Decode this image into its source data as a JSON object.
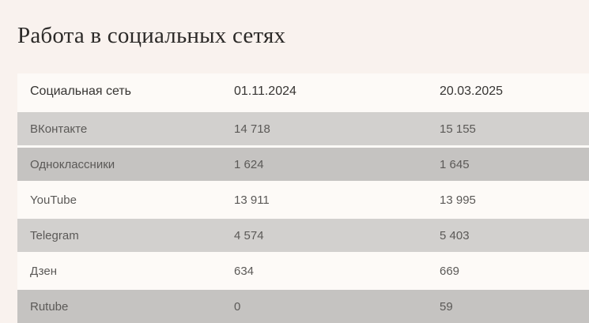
{
  "page": {
    "title": "Работа в социальных сетях"
  },
  "table": {
    "columns": [
      {
        "label": "Социальная сеть"
      },
      {
        "label": "01.11.2024"
      },
      {
        "label": "20.03.2025"
      }
    ],
    "rows": [
      {
        "network": "ВКонтакте",
        "value_nov2024": "14 718",
        "value_mar2025": "15 155"
      },
      {
        "network": "Одноклассники",
        "value_nov2024": "1 624",
        "value_mar2025": "1 645"
      },
      {
        "network": "YouTube",
        "value_nov2024": "13 911",
        "value_mar2025": "13 995"
      },
      {
        "network": "Telegram",
        "value_nov2024": "4 574",
        "value_mar2025": "5 403"
      },
      {
        "network": "Дзен",
        "value_nov2024": "634",
        "value_mar2025": "669"
      },
      {
        "network": "Rutube",
        "value_nov2024": "0",
        "value_mar2025": "59"
      }
    ]
  },
  "colors": {
    "page_background": "#f9f2ee",
    "row_light": "#fdfaf7",
    "row_gray": "#d2d0ce",
    "row_gray_dark": "#c5c3c1",
    "header_text": "#363432",
    "cell_text": "#5b5957",
    "title_text": "#2c2a28"
  }
}
